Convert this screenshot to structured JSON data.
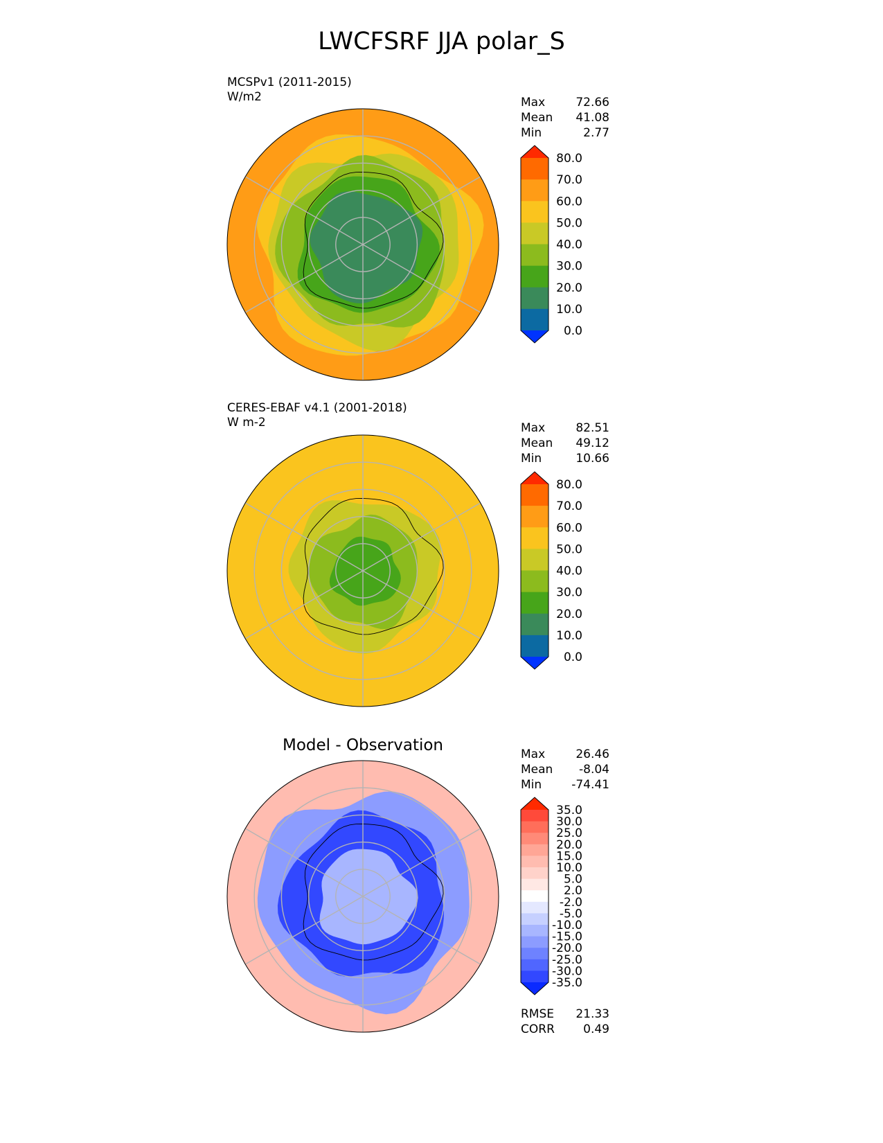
{
  "figure": {
    "title": "LWCFSRF JJA polar_S"
  },
  "panels": [
    {
      "dataset": "MCSPv1 (2011-2015)",
      "units": "W/m2",
      "stats": [
        {
          "label": "Max",
          "value": "72.66"
        },
        {
          "label": "Mean",
          "value": "41.08"
        },
        {
          "label": "Min",
          "value": "2.77"
        }
      ]
    },
    {
      "dataset": "CERES-EBAF v4.1 (2001-2018)",
      "units": "W m-2",
      "stats": [
        {
          "label": "Max",
          "value": "82.51"
        },
        {
          "label": "Mean",
          "value": "49.12"
        },
        {
          "label": "Min",
          "value": "10.66"
        }
      ]
    },
    {
      "title": "Model - Observation",
      "stats": [
        {
          "label": "Max",
          "value": "26.46"
        },
        {
          "label": "Mean",
          "value": "-8.04"
        },
        {
          "label": "Min",
          "value": "-74.41"
        }
      ],
      "metrics": [
        {
          "label": "RMSE",
          "value": "21.33"
        },
        {
          "label": "CORR",
          "value": "0.49"
        }
      ]
    }
  ],
  "chart_data": [
    {
      "type": "heatmap",
      "projection": "south-polar-stereographic",
      "title": "MCSPv1 (2011-2015)",
      "units": "W/m2",
      "colorbar": {
        "ticks": [
          "80.0",
          "70.0",
          "60.0",
          "50.0",
          "40.0",
          "30.0",
          "20.0",
          "10.0",
          "0.0"
        ],
        "colors": [
          "#ff2a00",
          "#ff6a00",
          "#ff9c16",
          "#fac41e",
          "#c9c926",
          "#8cbb1e",
          "#47a51a",
          "#3a8a5a",
          "#0c6aa2",
          "#0033ff"
        ],
        "extend": "both"
      },
      "zones": [
        {
          "r": 1.0,
          "level": 60
        },
        {
          "r": 0.8,
          "level": 50
        },
        {
          "r": 0.7,
          "level": 40
        },
        {
          "r": 0.62,
          "level": 30
        },
        {
          "r": 0.5,
          "level": 20
        },
        {
          "r": 0.4,
          "level": 10
        }
      ]
    },
    {
      "type": "heatmap",
      "projection": "south-polar-stereographic",
      "title": "CERES-EBAF v4.1 (2001-2018)",
      "units": "W m-2",
      "colorbar": {
        "ticks": [
          "80.0",
          "70.0",
          "60.0",
          "50.0",
          "40.0",
          "30.0",
          "20.0",
          "10.0",
          "0.0"
        ],
        "colors": [
          "#ff2a00",
          "#ff6a00",
          "#ff9c16",
          "#fac41e",
          "#c9c926",
          "#8cbb1e",
          "#47a51a",
          "#3a8a5a",
          "#0c6aa2",
          "#0033ff"
        ],
        "extend": "both"
      },
      "zones": [
        {
          "r": 1.0,
          "level": 50
        },
        {
          "r": 0.55,
          "level": 40
        },
        {
          "r": 0.4,
          "level": 30
        },
        {
          "r": 0.25,
          "level": 20
        }
      ]
    },
    {
      "type": "heatmap",
      "projection": "south-polar-stereographic",
      "title": "Model - Observation",
      "colorbar": {
        "ticks": [
          "35.0",
          "30.0",
          "25.0",
          "20.0",
          "15.0",
          "10.0",
          "5.0",
          "2.0",
          "-2.0",
          "-5.0",
          "-10.0",
          "-15.0",
          "-20.0",
          "-25.0",
          "-30.0",
          "-35.0"
        ],
        "colors": [
          "#ff2a00",
          "#ff4a3a",
          "#ff6e5a",
          "#ff8a78",
          "#ffa696",
          "#ffbcb0",
          "#ffd2ca",
          "#ffe8e4",
          "#ffffff",
          "#e4e8ff",
          "#c6d0ff",
          "#a8b6ff",
          "#8c9cff",
          "#6e82ff",
          "#5066ff",
          "#3248ff",
          "#0a2aff"
        ],
        "extend": "both"
      },
      "zones": [
        {
          "r": 1.0,
          "level": 10
        },
        {
          "r": 0.78,
          "level": -20
        },
        {
          "r": 0.6,
          "level": -35
        },
        {
          "r": 0.35,
          "level": -15
        }
      ]
    }
  ]
}
